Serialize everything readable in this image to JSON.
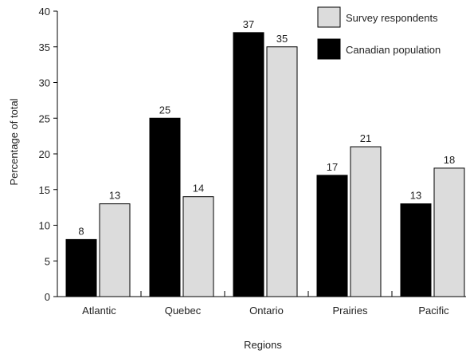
{
  "chart_data": {
    "type": "bar",
    "xlabel": "Regions",
    "ylabel": "Percentage of total",
    "ylim": [
      0,
      40
    ],
    "yticks": [
      0,
      5,
      10,
      15,
      20,
      25,
      30,
      35,
      40
    ],
    "grid": false,
    "legend_position": "top-right",
    "categories": [
      "Atlantic",
      "Quebec",
      "Ontario",
      "Prairies",
      "Pacific"
    ],
    "series": [
      {
        "name": "Canadian population",
        "color": "#000000",
        "values": [
          8,
          25,
          37,
          17,
          13
        ]
      },
      {
        "name": "Survey respondents",
        "color": "#dcdcdc",
        "values": [
          13,
          14,
          35,
          21,
          18
        ]
      }
    ],
    "legend_order": [
      "Survey respondents",
      "Canadian population"
    ]
  }
}
